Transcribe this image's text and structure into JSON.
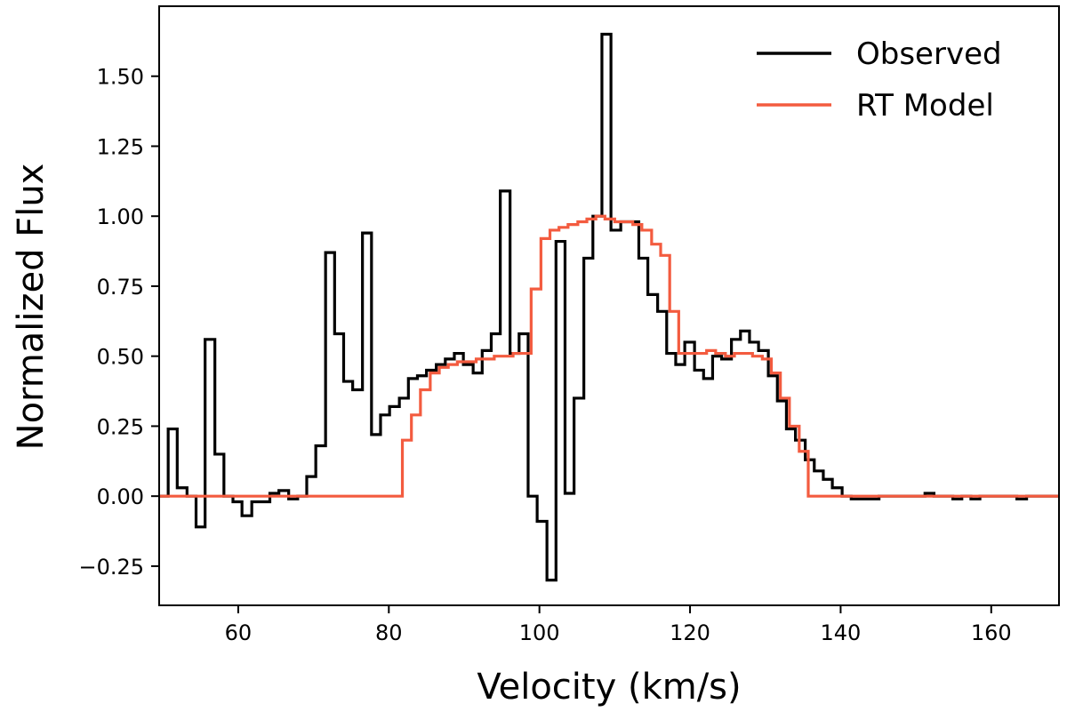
{
  "chart_data": {
    "type": "line",
    "step": true,
    "title": "",
    "xlabel": "Velocity (km/s)",
    "ylabel": "Normalized Flux",
    "xlim": [
      49.5,
      169
    ],
    "ylim": [
      -0.39,
      1.75
    ],
    "xticks": [
      60,
      80,
      100,
      120,
      140,
      160
    ],
    "xtick_labels": [
      "60",
      "80",
      "100",
      "120",
      "140",
      "160"
    ],
    "yticks": [
      -0.25,
      0.0,
      0.25,
      0.5,
      0.75,
      1.0,
      1.25,
      1.5
    ],
    "ytick_labels": [
      "−0.25",
      "0.00",
      "0.25",
      "0.50",
      "0.75",
      "1.00",
      "1.25",
      "1.50"
    ],
    "legend_position": "top-right",
    "series": [
      {
        "name": "Observed",
        "color": "#000000",
        "x": [
          49.5,
          50.7,
          51.9,
          53.2,
          54.4,
          55.6,
          56.9,
          58.1,
          59.3,
          60.5,
          61.8,
          63.0,
          64.2,
          65.4,
          66.7,
          67.9,
          69.1,
          70.3,
          71.6,
          72.8,
          74.0,
          75.2,
          76.5,
          77.7,
          78.9,
          80.1,
          81.4,
          82.6,
          83.8,
          85.0,
          86.3,
          87.5,
          88.7,
          89.9,
          91.2,
          92.4,
          93.6,
          94.8,
          96.1,
          97.3,
          98.5,
          99.7,
          101.0,
          102.2,
          103.4,
          104.6,
          105.9,
          107.1,
          108.3,
          109.5,
          110.8,
          112.0,
          113.2,
          114.4,
          115.7,
          116.9,
          118.1,
          119.3,
          120.6,
          121.8,
          123.0,
          124.2,
          125.5,
          126.7,
          127.9,
          129.1,
          130.4,
          131.6,
          132.8,
          134.0,
          135.3,
          136.5,
          137.7,
          138.9,
          140.2,
          141.4,
          142.6,
          143.8,
          145.1,
          146.3,
          147.5,
          148.7,
          150.0,
          151.2,
          152.4,
          153.6,
          154.9,
          156.1,
          157.3,
          158.5,
          159.8,
          161.0,
          162.2,
          163.4,
          164.7,
          165.9,
          167.1,
          168.3
        ],
        "y": [
          0.0,
          0.24,
          0.03,
          0.0,
          -0.11,
          0.56,
          0.15,
          0.0,
          -0.02,
          -0.07,
          -0.02,
          -0.02,
          0.01,
          0.02,
          -0.01,
          0.0,
          0.07,
          0.18,
          0.87,
          0.58,
          0.41,
          0.38,
          0.94,
          0.22,
          0.29,
          0.32,
          0.35,
          0.42,
          0.43,
          0.45,
          0.47,
          0.49,
          0.51,
          0.47,
          0.44,
          0.52,
          0.58,
          1.09,
          0.51,
          0.58,
          0.0,
          -0.09,
          -0.3,
          0.91,
          0.01,
          0.35,
          0.85,
          1.0,
          1.65,
          0.95,
          0.98,
          0.98,
          0.85,
          0.72,
          0.66,
          0.51,
          0.47,
          0.55,
          0.45,
          0.42,
          0.5,
          0.49,
          0.56,
          0.59,
          0.55,
          0.52,
          0.43,
          0.34,
          0.24,
          0.2,
          0.13,
          0.09,
          0.06,
          0.03,
          0.0,
          -0.01,
          -0.01,
          -0.01,
          0.0,
          0.0,
          0.0,
          0.0,
          0.0,
          0.01,
          0.0,
          0.0,
          -0.01,
          0.0,
          -0.01,
          0.0,
          0.0,
          0.0,
          0.0,
          -0.01,
          0.0,
          0.0,
          0.0,
          0.0
        ]
      },
      {
        "name": "RT Model",
        "color": "#F35B3F",
        "x": [
          49.5,
          81.8,
          83.0,
          84.2,
          85.5,
          86.7,
          87.9,
          89.1,
          90.4,
          91.6,
          92.8,
          94.0,
          95.3,
          96.5,
          97.7,
          98.9,
          100.2,
          101.4,
          102.6,
          103.8,
          105.1,
          106.3,
          107.5,
          108.7,
          110.0,
          111.2,
          112.4,
          113.6,
          114.9,
          116.1,
          117.3,
          118.5,
          119.8,
          121.0,
          122.2,
          123.4,
          124.7,
          125.9,
          127.1,
          128.3,
          129.6,
          130.8,
          132.0,
          133.2,
          134.5,
          135.7,
          136.9,
          169.0
        ],
        "y": [
          0.0,
          0.2,
          0.29,
          0.38,
          0.44,
          0.46,
          0.47,
          0.48,
          0.48,
          0.49,
          0.49,
          0.5,
          0.5,
          0.51,
          0.51,
          0.74,
          0.92,
          0.95,
          0.96,
          0.97,
          0.98,
          0.99,
          1.0,
          0.99,
          0.98,
          0.98,
          0.97,
          0.95,
          0.9,
          0.86,
          0.66,
          0.51,
          0.51,
          0.51,
          0.52,
          0.51,
          0.5,
          0.51,
          0.51,
          0.5,
          0.49,
          0.44,
          0.35,
          0.25,
          0.16,
          0.0,
          0.0,
          0.0
        ]
      }
    ]
  }
}
